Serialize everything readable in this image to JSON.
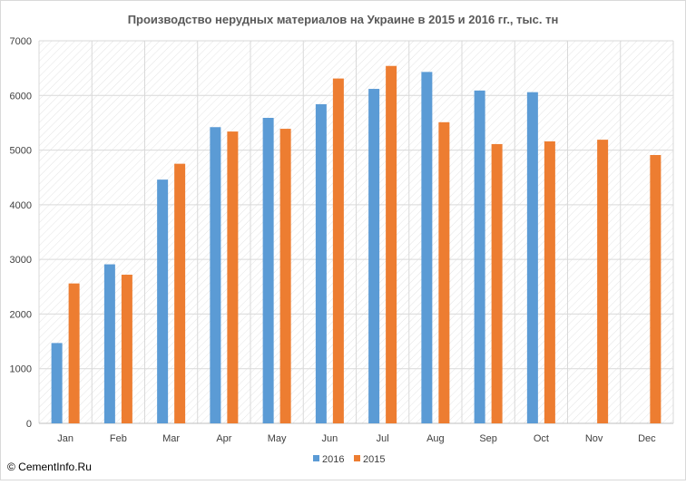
{
  "chart_data": {
    "type": "bar",
    "title": "Производство нерудных материалов на Украине в 2015  и 2016  гг., тыс. тн",
    "categories": [
      "Jan",
      "Feb",
      "Mar",
      "Apr",
      "May",
      "Jun",
      "Jul",
      "Aug",
      "Sep",
      "Oct",
      "Nov",
      "Dec"
    ],
    "series": [
      {
        "name": "2016",
        "color": "#5b9bd5",
        "values": [
          1470,
          2910,
          4460,
          5420,
          5590,
          5840,
          6120,
          6430,
          6090,
          6060,
          null,
          null
        ]
      },
      {
        "name": "2015",
        "color": "#ed7d31",
        "values": [
          2560,
          2720,
          4750,
          5340,
          5390,
          6310,
          6540,
          5510,
          5110,
          5160,
          5190,
          4910
        ]
      }
    ],
    "ylim": [
      0,
      7000
    ],
    "yticks": [
      0,
      1000,
      2000,
      3000,
      4000,
      5000,
      6000,
      7000
    ],
    "grid": true,
    "legend": "bottom",
    "xlabel": "",
    "ylabel": ""
  },
  "watermark": "© CementInfo.Ru"
}
